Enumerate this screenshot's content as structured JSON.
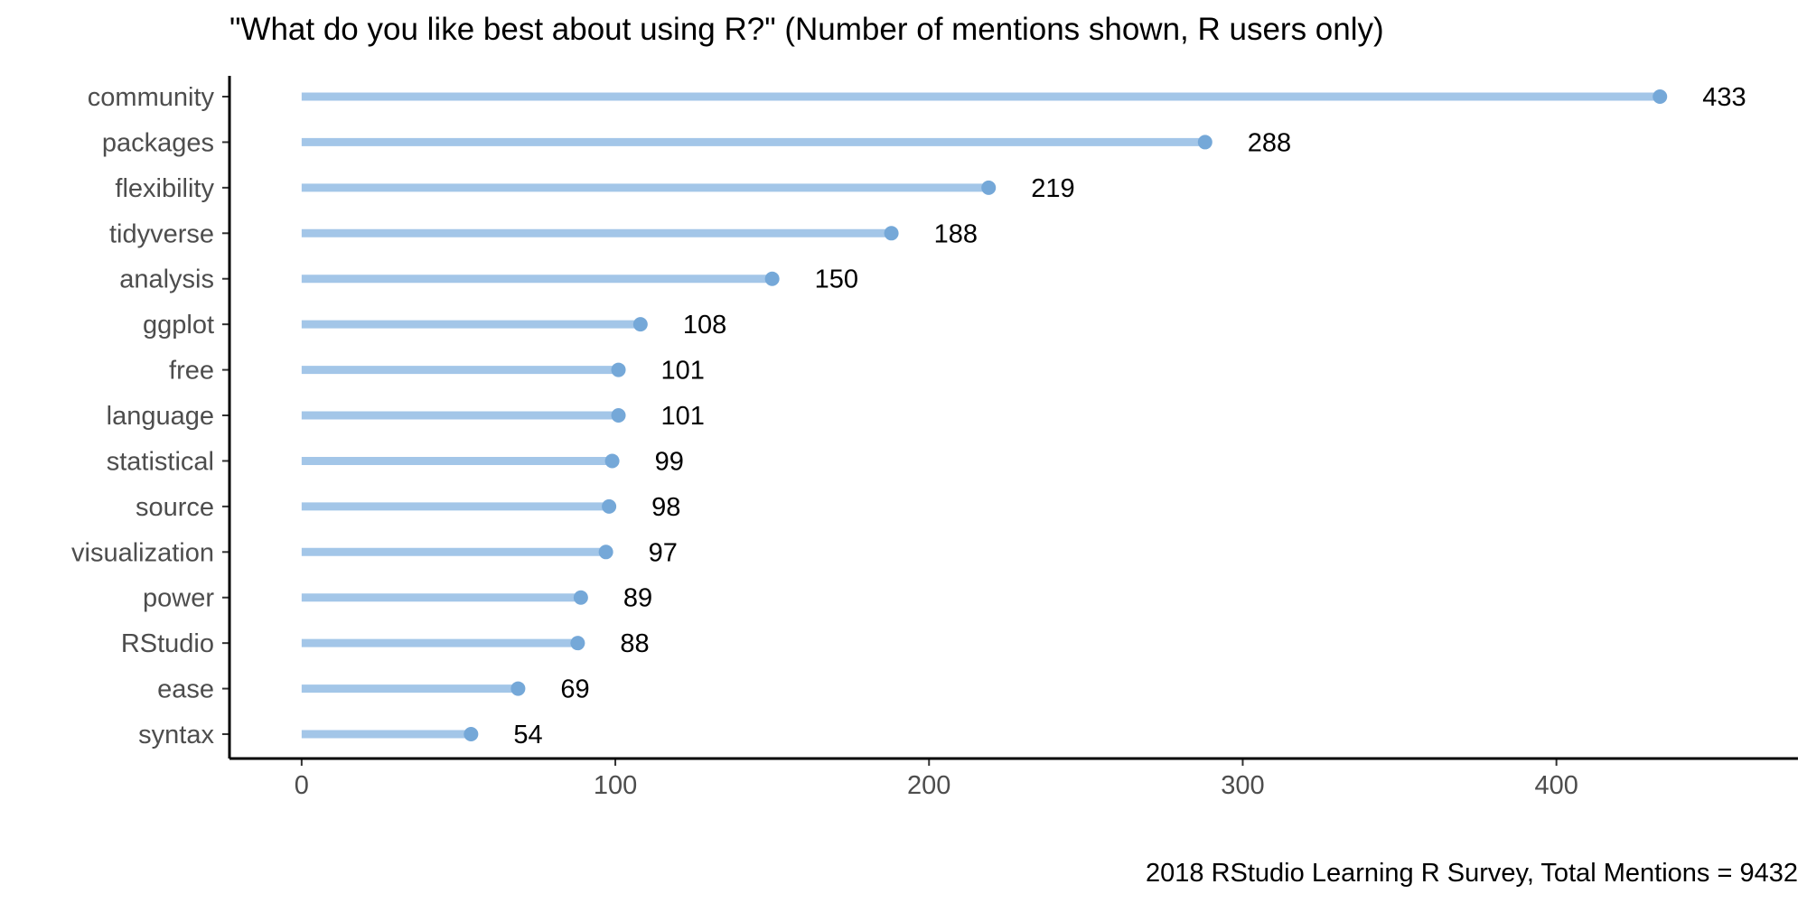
{
  "chart_data": {
    "type": "lollipop",
    "title": "\"What do you like best about using R?\" (Number of mentions shown, R users only)",
    "caption": "2018 RStudio Learning R Survey, Total Mentions = 9432",
    "xlabel": "",
    "ylabel": "",
    "xlim": [
      -23,
      477
    ],
    "x_ticks": [
      0,
      100,
      200,
      300,
      400
    ],
    "grid": false,
    "categories": [
      "community",
      "packages",
      "flexibility",
      "tidyverse",
      "analysis",
      "ggplot",
      "free",
      "language",
      "statistical",
      "source",
      "visualization",
      "power",
      "RStudio",
      "ease",
      "syntax"
    ],
    "values": [
      433,
      288,
      219,
      188,
      150,
      108,
      101,
      101,
      99,
      98,
      97,
      89,
      88,
      69,
      54
    ],
    "color": "#75a8d8",
    "segment_color": "#a3c6e8"
  }
}
